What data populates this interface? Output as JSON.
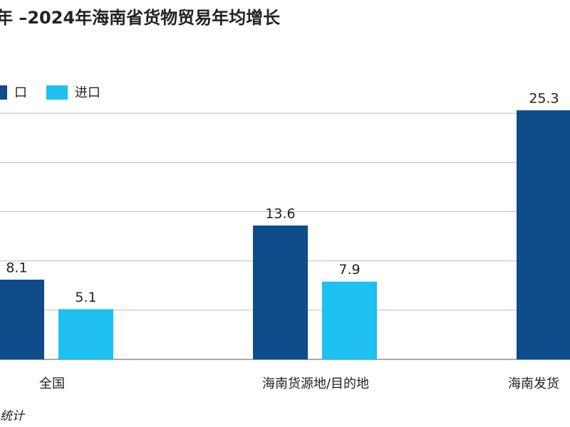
{
  "chart_data": {
    "type": "bar",
    "title": "年 –2024年海南省货物贸易年均增长",
    "categories": [
      "全国",
      "海南货源地/目的地",
      "海南发货"
    ],
    "series": [
      {
        "name": "口",
        "color": "#0f4c8a",
        "values": [
          8.1,
          13.6,
          25.3
        ]
      },
      {
        "name": "进口",
        "color": "#1ec0ef",
        "values": [
          5.1,
          7.9,
          null
        ]
      }
    ],
    "ylim": [
      0,
      30
    ],
    "yticks": [
      0,
      5,
      10,
      15,
      20,
      25
    ],
    "grid": true,
    "note": "统计"
  }
}
